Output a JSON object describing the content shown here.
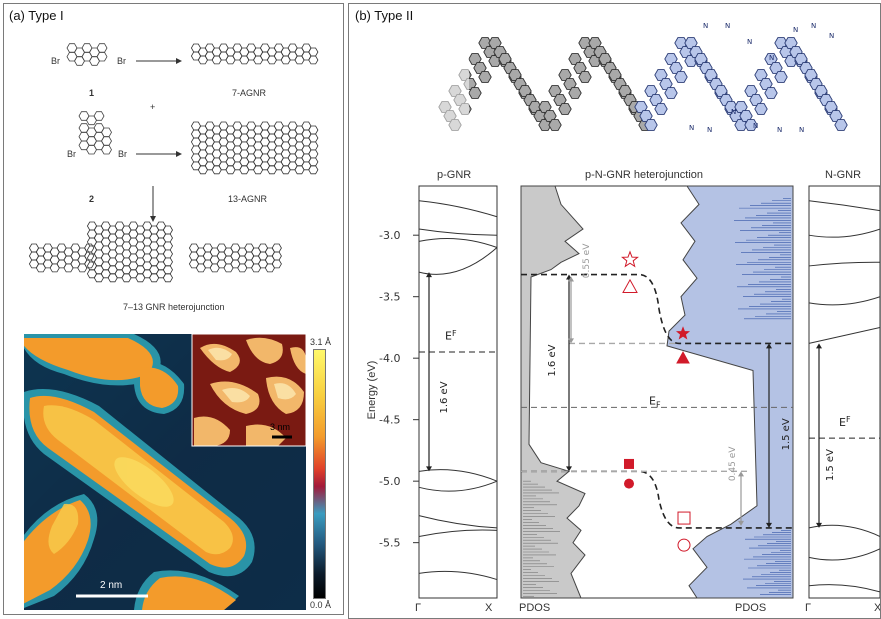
{
  "panel_a": {
    "label": "(a) Type I",
    "scheme": {
      "br": "Br",
      "mol1_num": "1",
      "mol1_product": "7-AGNR",
      "plus": "+",
      "mol2_num": "2",
      "mol2_product": "13-AGNR",
      "heterojunction": "7–13 GNR heterojunction"
    },
    "stm": {
      "scale_bar": "2 nm",
      "inset_scale_bar": "3 nm",
      "colorbar_max": "3.1 Å",
      "colorbar_min": "0.0 Å"
    }
  },
  "panel_b": {
    "label": "(b) Type II",
    "ribbon_n_label": "N",
    "left_plot": {
      "title": "p-GNR",
      "x_ticks": [
        "Γ",
        "X"
      ],
      "ef_label": "E",
      "ef_sub": "F",
      "gap_label": "1.6 eV"
    },
    "middle_plot": {
      "title": "p-N-GNR heterojunction",
      "x_ticks": [
        "PDOS",
        "PDOS"
      ],
      "ef_label": "E",
      "ef_sub": "F",
      "gap_left": "1.6 eV",
      "gap_right": "1.5 eV",
      "offset_top": "0.55 eV",
      "offset_bottom": "0.45 eV"
    },
    "right_plot": {
      "title": "N-GNR",
      "x_ticks": [
        "Γ",
        "X"
      ],
      "ef_label": "E",
      "ef_sub": "F",
      "gap_label": "1.5 eV"
    },
    "y_axis": {
      "label": "Energy (eV)",
      "ticks": [
        "-3.0",
        "-3.5",
        "-4.0",
        "-4.5",
        "-5.0",
        "-5.5"
      ]
    }
  },
  "colors": {
    "gray_fill": "#c9c9c9",
    "blue_fill": "#b4c2e4",
    "marker_red": "#d11a2a",
    "dashed": "#222222",
    "light_dashed": "#a8a8a8"
  },
  "chart_data": [
    {
      "type": "line",
      "title": "p-GNR",
      "ylabel": "Energy (eV)",
      "ylim": [
        -5.95,
        -2.6
      ],
      "x_ticks": [
        "Γ",
        "X"
      ],
      "fermi_level_eV": -3.95,
      "band_gap_eV": 1.6,
      "valence_band_max_eV": -4.92,
      "conduction_band_min_eV": -3.3
    },
    {
      "type": "area",
      "title": "p-N-GNR heterojunction",
      "ylabel": "Energy (eV)",
      "ylim": [
        -5.95,
        -2.6
      ],
      "x_ticks": [
        "PDOS",
        "PDOS"
      ],
      "fermi_level_eV": -4.4,
      "p_side": {
        "vbm_eV": -4.92,
        "cbm_eV": -3.32,
        "gap_eV": 1.6
      },
      "n_side": {
        "vbm_eV": -5.38,
        "cbm_eV": -3.88,
        "gap_eV": 1.5
      },
      "conduction_band_offset_eV": 0.55,
      "valence_band_offset_eV": 0.45
    },
    {
      "type": "line",
      "title": "N-GNR",
      "ylabel": "Energy (eV)",
      "ylim": [
        -5.95,
        -2.6
      ],
      "x_ticks": [
        "Γ",
        "X"
      ],
      "fermi_level_eV": -4.65,
      "band_gap_eV": 1.5,
      "valence_band_max_eV": -5.38,
      "conduction_band_min_eV": -3.88
    }
  ]
}
